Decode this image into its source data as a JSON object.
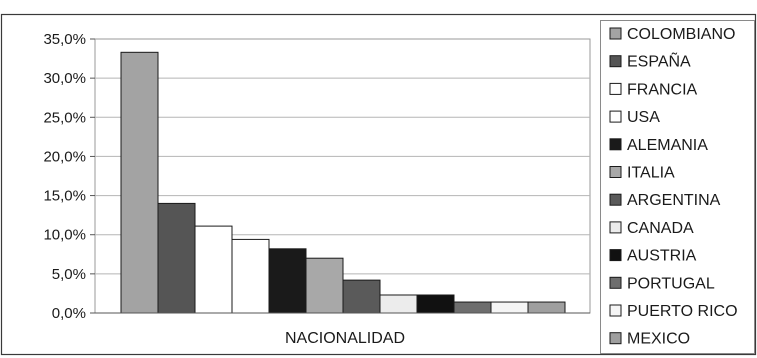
{
  "chart_data": {
    "type": "bar",
    "xlabel": "NACIONALIDAD",
    "ylabel": "",
    "ylim": [
      0,
      35
    ],
    "y_ticks": [
      0,
      5,
      10,
      15,
      20,
      25,
      30,
      35
    ],
    "y_tick_labels": [
      "0,0%",
      "5,0%",
      "10,0%",
      "15,0%",
      "20,0%",
      "25,0%",
      "30,0%",
      "35,0%"
    ],
    "grid": true,
    "legend_position": "right",
    "series": [
      {
        "name": "COLOMBIANO",
        "value": 33.3,
        "color": "#a3a3a3"
      },
      {
        "name": "ESPAÑA",
        "value": 14.0,
        "color": "#555555"
      },
      {
        "name": "FRANCIA",
        "value": 11.1,
        "color": "#ffffff"
      },
      {
        "name": "USA",
        "value": 9.4,
        "color": "#ffffff"
      },
      {
        "name": "ALEMANIA",
        "value": 8.2,
        "color": "#1a1a1a"
      },
      {
        "name": "ITALIA",
        "value": 7.0,
        "color": "#a8a8a8"
      },
      {
        "name": "ARGENTINA",
        "value": 4.2,
        "color": "#5a5a5a"
      },
      {
        "name": "CANADA",
        "value": 2.3,
        "color": "#ececec"
      },
      {
        "name": "AUSTRIA",
        "value": 2.3,
        "color": "#111111"
      },
      {
        "name": "PORTUGAL",
        "value": 1.4,
        "color": "#6e6e6e"
      },
      {
        "name": "PUERTO RICO",
        "value": 1.4,
        "color": "#f5f5f5"
      },
      {
        "name": "MEXICO",
        "value": 1.4,
        "color": "#9f9f9f"
      }
    ]
  }
}
